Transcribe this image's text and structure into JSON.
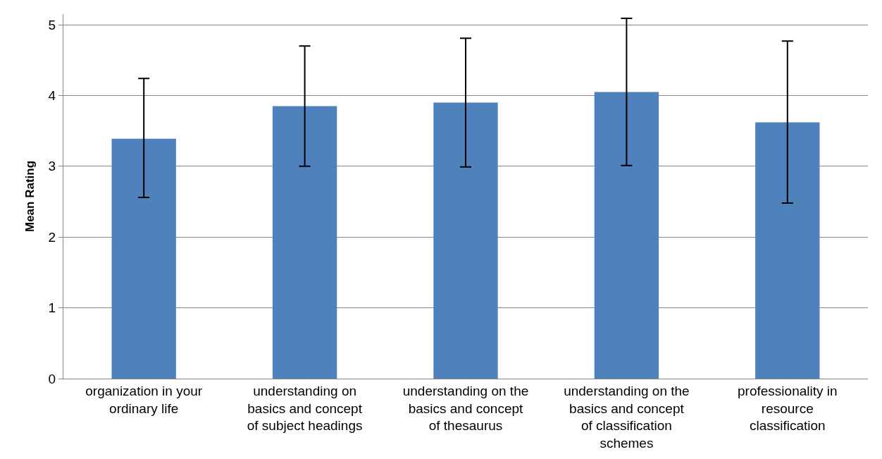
{
  "chart_data": {
    "type": "bar",
    "ylabel": "Mean Rating",
    "categories": [
      "organization in your ordinary life",
      "understanding on basics and concept of subject headings",
      "understanding on the basics and concept of thesaurus",
      "understanding on the basics and concept of classification schemes",
      "professionality in resource classification"
    ],
    "values": [
      3.39,
      3.85,
      3.9,
      4.05,
      3.62
    ],
    "errors": [
      [
        2.56,
        4.24
      ],
      [
        3.0,
        4.7
      ],
      [
        2.99,
        4.81
      ],
      [
        3.01,
        5.09
      ],
      [
        2.48,
        4.77
      ]
    ],
    "color": "#4f81bd",
    "ylim": [
      0,
      5.15
    ],
    "yticks": [
      0,
      1,
      2,
      3,
      4,
      5
    ],
    "grid": "y",
    "legend": false
  }
}
